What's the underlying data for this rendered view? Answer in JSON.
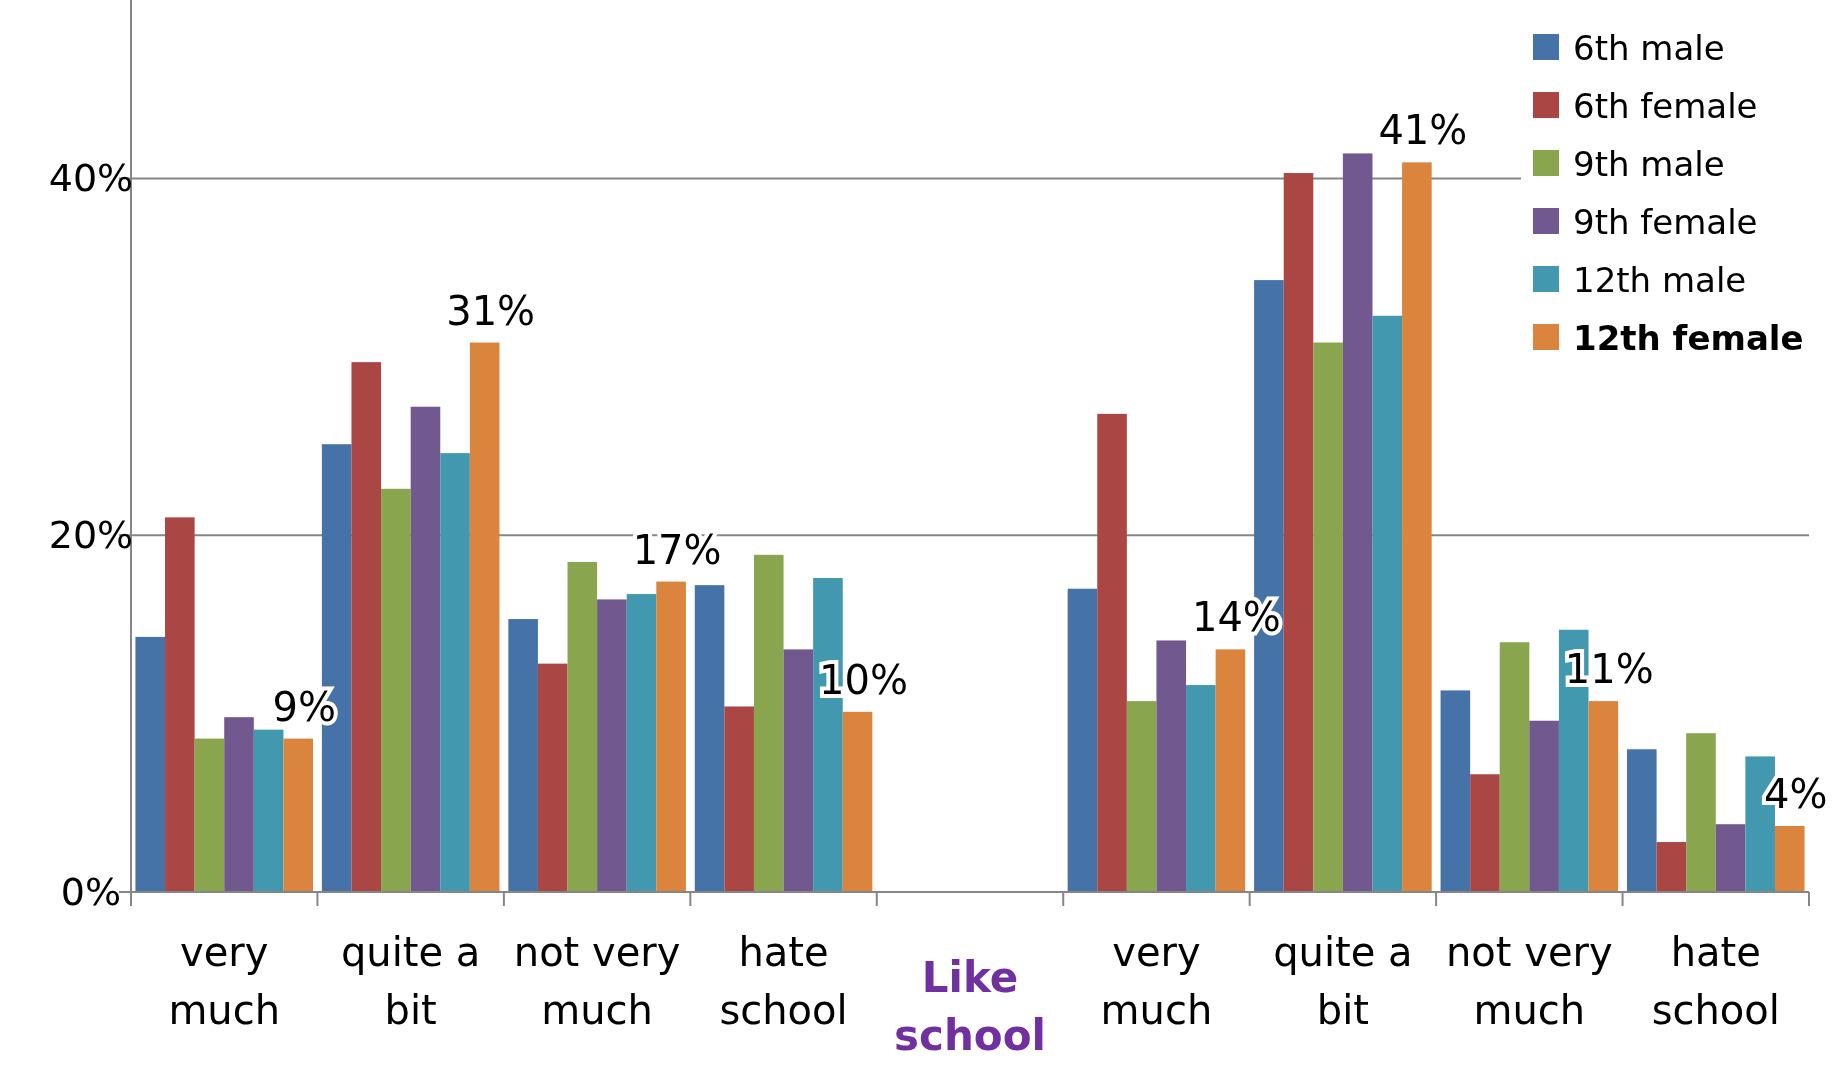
{
  "chart_data": {
    "type": "bar",
    "categories": [
      "very much",
      "quite a bit",
      "not very much",
      "hate school",
      "Like school",
      "very much",
      "quite a bit",
      "not very much",
      "hate school"
    ],
    "series": [
      {
        "name": "6th male",
        "color": "#4572a7",
        "values": [
          14.3,
          25.1,
          15.3,
          17.2,
          null,
          17.0,
          34.3,
          11.3,
          8.0
        ]
      },
      {
        "name": "6th female",
        "color": "#aa4643",
        "values": [
          21.0,
          29.7,
          12.8,
          10.4,
          null,
          26.8,
          40.3,
          6.6,
          2.8
        ]
      },
      {
        "name": "9th male",
        "color": "#89a54e",
        "values": [
          8.6,
          22.6,
          18.5,
          18.9,
          null,
          10.7,
          30.8,
          14.0,
          8.9
        ]
      },
      {
        "name": "9th female",
        "color": "#71588f",
        "values": [
          9.8,
          27.2,
          16.4,
          13.6,
          null,
          14.1,
          41.4,
          9.6,
          3.8
        ]
      },
      {
        "name": "12th male",
        "color": "#4198af",
        "values": [
          9.1,
          24.6,
          16.7,
          17.6,
          null,
          11.6,
          32.3,
          14.7,
          7.6
        ]
      },
      {
        "name": "12th female",
        "color": "#db843d",
        "values": [
          8.6,
          30.8,
          17.4,
          10.1,
          null,
          13.6,
          40.9,
          10.7,
          3.7
        ],
        "value_labels": [
          "9%",
          "31%",
          "17%",
          "10%",
          null,
          "14%",
          "41%",
          "11%",
          "4%"
        ]
      }
    ],
    "ylim": [
      0,
      50
    ],
    "yticks": [
      {
        "value": 0,
        "label": "0%"
      },
      {
        "value": 20,
        "label": "20%"
      },
      {
        "value": 40,
        "label": "40%"
      }
    ],
    "grid": "y",
    "legend": "top right"
  }
}
